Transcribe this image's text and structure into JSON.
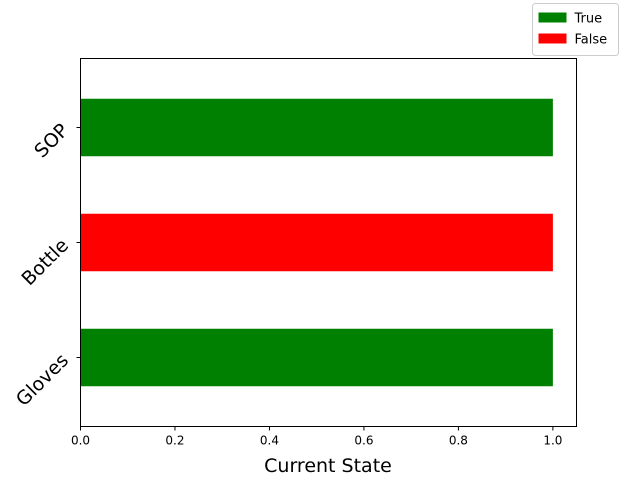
{
  "chart_data": {
    "type": "bar",
    "orientation": "horizontal",
    "categories": [
      "Gloves",
      "Bottle",
      "SOP"
    ],
    "values": [
      1.0,
      1.0,
      1.0
    ],
    "states": [
      "True",
      "False",
      "True"
    ],
    "xlabel": "Current State",
    "ylabel": "",
    "xlim": [
      0.0,
      1.05
    ],
    "xticks": [
      "0.0",
      "0.2",
      "0.4",
      "0.6",
      "0.8",
      "1.0"
    ],
    "grid": false,
    "legend": {
      "placement": "top-right",
      "entries": [
        {
          "label": "True",
          "color": "#008000"
        },
        {
          "label": "False",
          "color": "#ff0000"
        }
      ]
    }
  }
}
